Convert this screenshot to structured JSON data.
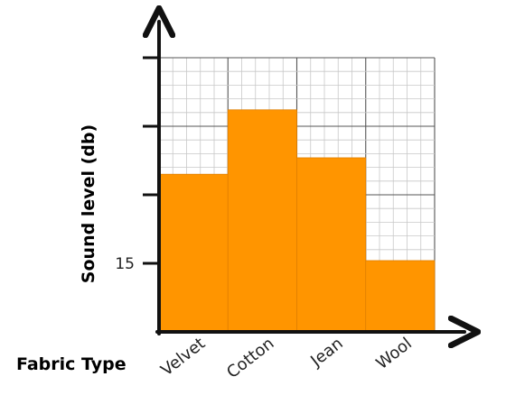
{
  "chart_data": {
    "type": "bar",
    "xlabel": "Fabric Type",
    "ylabel": "Sound level (db)",
    "categories": [
      "Velvet",
      "Cotton",
      "Jean",
      "Wool"
    ],
    "values": [
      21.5,
      26.2,
      22.7,
      15.2
    ],
    "ylim": [
      10,
      30
    ],
    "yticks": [
      15,
      20,
      25,
      30
    ],
    "ytick_labels": [
      "15",
      "",
      "",
      ""
    ],
    "grid": true,
    "bar_color": "#FF9500",
    "bar_edge_color": "#E07F00"
  }
}
